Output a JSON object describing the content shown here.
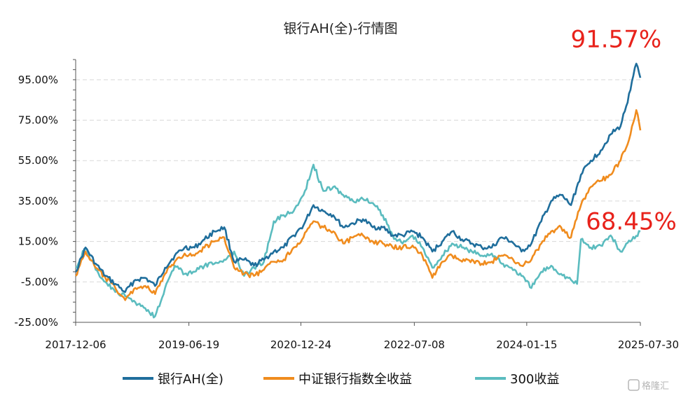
{
  "chart_data": {
    "type": "line",
    "title": "银行AH(全)-行情图",
    "ylim": [
      -25,
      105
    ],
    "y_ticks": [
      "95.00%",
      "75.00%",
      "55.00%",
      "35.00%",
      "15.00%",
      "-5.00%",
      "-25.00%"
    ],
    "y_tick_values": [
      95,
      75,
      55,
      35,
      15,
      -5,
      -25
    ],
    "x_ticks": [
      "2017-12-06",
      "2019-06-19",
      "2020-12-24",
      "2022-07-08",
      "2024-01-15",
      "2025-07-30"
    ],
    "x_tick_values": [
      "2017-12-06",
      "2019-06-19",
      "2020-12-24",
      "2022-07-08",
      "2024-01-15",
      "2025-07-30"
    ],
    "grid": "horizontal-dashed",
    "legend_position": "bottom",
    "series": [
      {
        "name": "银行AH(全)",
        "color": "#1f6e9c",
        "points": [
          [
            "2017-12-06",
            0
          ],
          [
            "2018-01-24",
            12
          ],
          [
            "2018-03-15",
            4
          ],
          [
            "2018-05-02",
            -2
          ],
          [
            "2018-06-20",
            -6
          ],
          [
            "2018-08-08",
            -10
          ],
          [
            "2018-09-27",
            -4
          ],
          [
            "2018-11-15",
            -3
          ],
          [
            "2019-01-03",
            -7
          ],
          [
            "2019-02-21",
            2
          ],
          [
            "2019-04-10",
            8
          ],
          [
            "2019-05-29",
            12
          ],
          [
            "2019-07-17",
            12
          ],
          [
            "2019-09-04",
            16
          ],
          [
            "2019-10-23",
            20
          ],
          [
            "2019-12-11",
            22
          ],
          [
            "2020-01-29",
            5
          ],
          [
            "2020-03-18",
            6
          ],
          [
            "2020-05-06",
            3
          ],
          [
            "2020-06-24",
            6
          ],
          [
            "2020-08-12",
            10
          ],
          [
            "2020-09-30",
            12
          ],
          [
            "2020-11-18",
            18
          ],
          [
            "2021-01-06",
            23
          ],
          [
            "2021-02-24",
            33
          ],
          [
            "2021-04-14",
            30
          ],
          [
            "2021-06-02",
            28
          ],
          [
            "2021-07-21",
            22
          ],
          [
            "2021-09-08",
            24
          ],
          [
            "2021-10-27",
            26
          ],
          [
            "2021-12-15",
            22
          ],
          [
            "2022-02-02",
            22
          ],
          [
            "2022-03-23",
            18
          ],
          [
            "2022-05-11",
            18
          ],
          [
            "2022-06-29",
            20
          ],
          [
            "2022-08-17",
            17
          ],
          [
            "2022-10-05",
            10
          ],
          [
            "2022-11-23",
            15
          ],
          [
            "2023-01-11",
            20
          ],
          [
            "2023-03-01",
            16
          ],
          [
            "2023-04-19",
            14
          ],
          [
            "2023-06-07",
            12
          ],
          [
            "2023-07-26",
            12
          ],
          [
            "2023-09-13",
            17
          ],
          [
            "2023-11-01",
            15
          ],
          [
            "2023-12-20",
            10
          ],
          [
            "2024-02-07",
            14
          ],
          [
            "2024-03-27",
            25
          ],
          [
            "2024-05-15",
            35
          ],
          [
            "2024-07-03",
            38
          ],
          [
            "2024-08-21",
            33
          ],
          [
            "2024-10-09",
            48
          ],
          [
            "2024-11-27",
            55
          ],
          [
            "2025-01-15",
            60
          ],
          [
            "2025-03-05",
            68
          ],
          [
            "2025-04-23",
            72
          ],
          [
            "2025-06-11",
            90
          ],
          [
            "2025-07-10",
            103
          ],
          [
            "2025-07-30",
            96
          ]
        ]
      },
      {
        "name": "中证银行指数全收益",
        "color": "#f08c1e",
        "points": [
          [
            "2017-12-06",
            -2
          ],
          [
            "2018-01-24",
            10
          ],
          [
            "2018-03-15",
            2
          ],
          [
            "2018-05-02",
            -3
          ],
          [
            "2018-06-20",
            -8
          ],
          [
            "2018-08-08",
            -14
          ],
          [
            "2018-09-27",
            -8
          ],
          [
            "2018-11-15",
            -7
          ],
          [
            "2019-01-03",
            -11
          ],
          [
            "2019-02-21",
            -1
          ],
          [
            "2019-04-10",
            5
          ],
          [
            "2019-05-29",
            9
          ],
          [
            "2019-07-17",
            8
          ],
          [
            "2019-09-04",
            12
          ],
          [
            "2019-10-23",
            15
          ],
          [
            "2019-12-11",
            17
          ],
          [
            "2020-01-29",
            2
          ],
          [
            "2020-03-18",
            -1
          ],
          [
            "2020-05-06",
            -2
          ],
          [
            "2020-06-24",
            1
          ],
          [
            "2020-08-12",
            5
          ],
          [
            "2020-09-30",
            6
          ],
          [
            "2020-11-18",
            12
          ],
          [
            "2021-01-06",
            17
          ],
          [
            "2021-02-24",
            25
          ],
          [
            "2021-04-14",
            22
          ],
          [
            "2021-06-02",
            20
          ],
          [
            "2021-07-21",
            14
          ],
          [
            "2021-09-08",
            17
          ],
          [
            "2021-10-27",
            18
          ],
          [
            "2021-12-15",
            15
          ],
          [
            "2022-02-02",
            14
          ],
          [
            "2022-03-23",
            12
          ],
          [
            "2022-05-11",
            12
          ],
          [
            "2022-06-29",
            13
          ],
          [
            "2022-08-17",
            8
          ],
          [
            "2022-10-05",
            -3
          ],
          [
            "2022-11-23",
            5
          ],
          [
            "2023-01-11",
            8
          ],
          [
            "2023-03-01",
            5
          ],
          [
            "2023-04-19",
            6
          ],
          [
            "2023-06-07",
            4
          ],
          [
            "2023-07-26",
            5
          ],
          [
            "2023-09-13",
            8
          ],
          [
            "2023-11-01",
            7
          ],
          [
            "2023-12-20",
            3
          ],
          [
            "2024-02-07",
            6
          ],
          [
            "2024-03-27",
            14
          ],
          [
            "2024-05-15",
            20
          ],
          [
            "2024-07-03",
            22
          ],
          [
            "2024-08-21",
            17
          ],
          [
            "2024-10-09",
            33
          ],
          [
            "2024-11-27",
            42
          ],
          [
            "2025-01-15",
            45
          ],
          [
            "2025-03-05",
            48
          ],
          [
            "2025-04-23",
            55
          ],
          [
            "2025-06-11",
            68
          ],
          [
            "2025-07-10",
            80
          ],
          [
            "2025-07-30",
            70
          ]
        ]
      },
      {
        "name": "300收益",
        "color": "#5bbcbf",
        "points": [
          [
            "2017-12-06",
            2
          ],
          [
            "2018-01-24",
            12
          ],
          [
            "2018-03-15",
            1
          ],
          [
            "2018-05-02",
            -5
          ],
          [
            "2018-06-20",
            -10
          ],
          [
            "2018-08-08",
            -12
          ],
          [
            "2018-09-27",
            -15
          ],
          [
            "2018-11-15",
            -18
          ],
          [
            "2019-01-03",
            -22
          ],
          [
            "2019-02-21",
            -8
          ],
          [
            "2019-04-10",
            3
          ],
          [
            "2019-05-29",
            -1
          ],
          [
            "2019-07-17",
            0
          ],
          [
            "2019-09-04",
            3
          ],
          [
            "2019-10-23",
            4
          ],
          [
            "2019-12-11",
            6
          ],
          [
            "2020-01-29",
            10
          ],
          [
            "2020-03-18",
            -2
          ],
          [
            "2020-05-06",
            2
          ],
          [
            "2020-06-24",
            5
          ],
          [
            "2020-08-12",
            25
          ],
          [
            "2020-09-30",
            28
          ],
          [
            "2020-11-18",
            30
          ],
          [
            "2021-01-06",
            38
          ],
          [
            "2021-02-24",
            53
          ],
          [
            "2021-04-14",
            40
          ],
          [
            "2021-06-02",
            42
          ],
          [
            "2021-07-21",
            38
          ],
          [
            "2021-09-08",
            35
          ],
          [
            "2021-10-27",
            36
          ],
          [
            "2021-12-15",
            34
          ],
          [
            "2022-02-02",
            28
          ],
          [
            "2022-03-23",
            18
          ],
          [
            "2022-05-11",
            14
          ],
          [
            "2022-06-29",
            18
          ],
          [
            "2022-08-17",
            12
          ],
          [
            "2022-10-05",
            2
          ],
          [
            "2022-11-23",
            8
          ],
          [
            "2023-01-11",
            14
          ],
          [
            "2023-03-01",
            12
          ],
          [
            "2023-04-19",
            10
          ],
          [
            "2023-06-07",
            8
          ],
          [
            "2023-07-26",
            9
          ],
          [
            "2023-09-13",
            4
          ],
          [
            "2023-11-01",
            2
          ],
          [
            "2023-12-20",
            -2
          ],
          [
            "2024-02-07",
            -8
          ],
          [
            "2024-03-27",
            0
          ],
          [
            "2024-05-15",
            3
          ],
          [
            "2024-07-03",
            -1
          ],
          [
            "2024-08-21",
            -4
          ],
          [
            "2024-09-20",
            -6
          ],
          [
            "2024-10-09",
            16
          ],
          [
            "2024-11-27",
            12
          ],
          [
            "2025-01-15",
            13
          ],
          [
            "2025-03-05",
            18
          ],
          [
            "2025-04-23",
            10
          ],
          [
            "2025-06-11",
            15
          ],
          [
            "2025-07-30",
            20
          ]
        ]
      }
    ],
    "annotations": [
      {
        "text": "91.57%",
        "at": [
          "2025-04-01",
          111
        ]
      },
      {
        "text": "68.45%",
        "at": [
          "2025-06-15",
          21
        ]
      }
    ]
  },
  "watermark": "格隆汇"
}
